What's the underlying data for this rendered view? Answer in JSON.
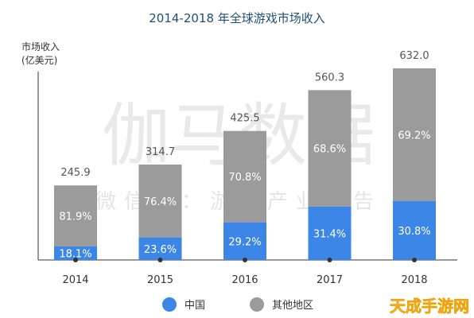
{
  "colors": {
    "china": "#3c86e8",
    "other": "#9b9b9b",
    "axis": "#333333",
    "title": "#1f4e79"
  },
  "watermark": {
    "main": "伽马数据",
    "sub": "微信号：游戏产业报告"
  },
  "logo_text": "天成手游网",
  "chart_data": {
    "type": "bar",
    "stacked": true,
    "title": "2014-2018 年全球游戏市场收入",
    "ylabel_line1": "市场收入",
    "ylabel_line2": "(亿美元)",
    "xlabel": "",
    "categories": [
      "2014",
      "2015",
      "2016",
      "2017",
      "2018"
    ],
    "totals": [
      245.9,
      314.7,
      425.5,
      560.3,
      632.0
    ],
    "total_labels": [
      "245.9",
      "314.7",
      "425.5",
      "560.3",
      "632.0"
    ],
    "series": [
      {
        "name": "中国",
        "color": "#3c86e8",
        "percent": [
          18.1,
          23.6,
          29.2,
          31.4,
          30.8
        ],
        "labels": [
          "18.1%",
          "23.6%",
          "29.2%",
          "31.4%",
          "30.8%"
        ]
      },
      {
        "name": "其他地区",
        "color": "#9b9b9b",
        "percent": [
          81.9,
          76.4,
          70.8,
          68.6,
          69.2
        ],
        "labels": [
          "81.9%",
          "76.4%",
          "70.8%",
          "68.6%",
          "69.2%"
        ]
      }
    ],
    "ylim": [
      0,
      632.0
    ],
    "grid": false,
    "legend_position": "bottom"
  }
}
